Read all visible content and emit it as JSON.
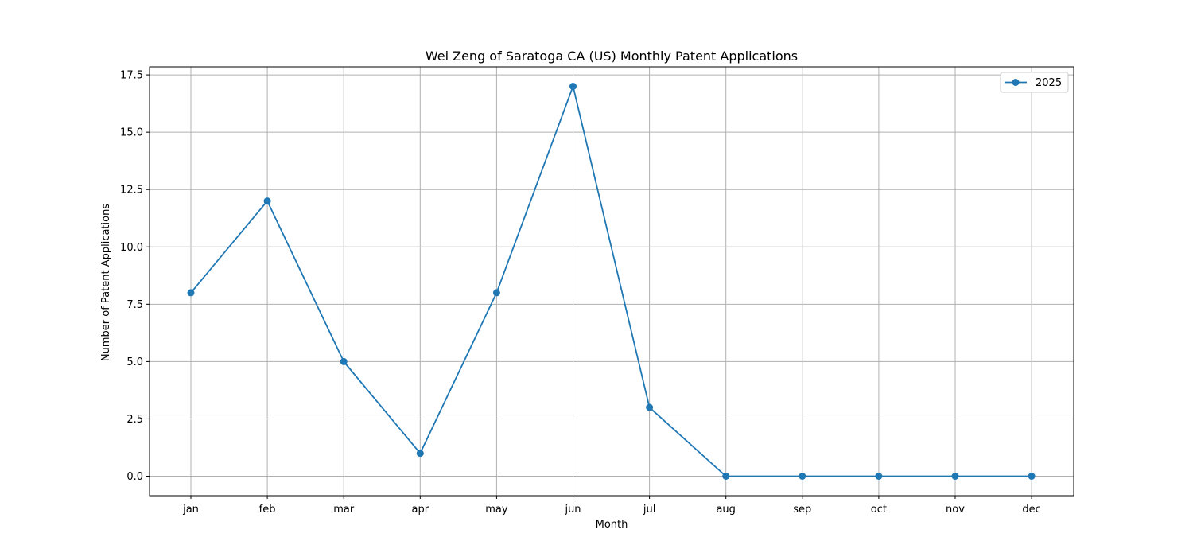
{
  "chart_data": {
    "type": "line",
    "title": "Wei Zeng of Saratoga CA (US) Monthly Patent Applications",
    "xlabel": "Month",
    "ylabel": "Number of Patent Applications",
    "categories": [
      "jan",
      "feb",
      "mar",
      "apr",
      "may",
      "jun",
      "jul",
      "aug",
      "sep",
      "oct",
      "nov",
      "dec"
    ],
    "ylim": [
      -0.85,
      17.85
    ],
    "yticks": [
      {
        "value": 0.0,
        "label": "0.0"
      },
      {
        "value": 2.5,
        "label": "2.5"
      },
      {
        "value": 5.0,
        "label": "5.0"
      },
      {
        "value": 7.5,
        "label": "7.5"
      },
      {
        "value": 10.0,
        "label": "10.0"
      },
      {
        "value": 12.5,
        "label": "12.5"
      },
      {
        "value": 15.0,
        "label": "15.0"
      },
      {
        "value": 17.5,
        "label": "17.5"
      }
    ],
    "grid": true,
    "legend_position": "top-right",
    "series": [
      {
        "name": "2025",
        "color": "#1f77b4",
        "marker": "circle",
        "values": [
          8,
          12,
          5,
          1,
          8,
          17,
          3,
          0,
          0,
          0,
          0,
          0
        ]
      }
    ]
  }
}
